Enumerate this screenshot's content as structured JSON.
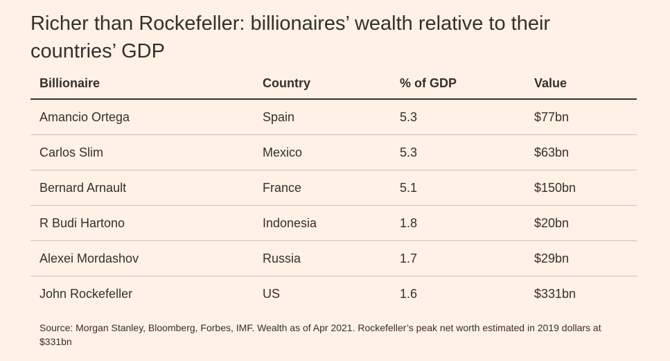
{
  "title": "Richer than Rockefeller: billionaires’ wealth relative to their countries’ GDP",
  "chart_data": {
    "type": "table",
    "title": "Richer than Rockefeller: billionaires’ wealth relative to their countries’ GDP",
    "columns": [
      "Billionaire",
      "Country",
      "% of GDP",
      "Value"
    ],
    "rows": [
      [
        "Amancio Ortega",
        "Spain",
        "5.3",
        "$77bn"
      ],
      [
        "Carlos Slim",
        "Mexico",
        "5.3",
        "$63bn"
      ],
      [
        "Bernard Arnault",
        "France",
        "5.1",
        "$150bn"
      ],
      [
        "R Budi Hartono",
        "Indonesia",
        "1.8",
        "$20bn"
      ],
      [
        "Alexei Mordashov",
        "Russia",
        "1.7",
        "$29bn"
      ],
      [
        "John Rockefeller",
        "US",
        "1.6",
        "$331bn"
      ]
    ]
  },
  "source": "Source: Morgan Stanley, Bloomberg, Forbes, IMF. Wealth as of Apr 2021. Rockefeller’s peak net worth estimated in 2019 dollars at $331bn"
}
